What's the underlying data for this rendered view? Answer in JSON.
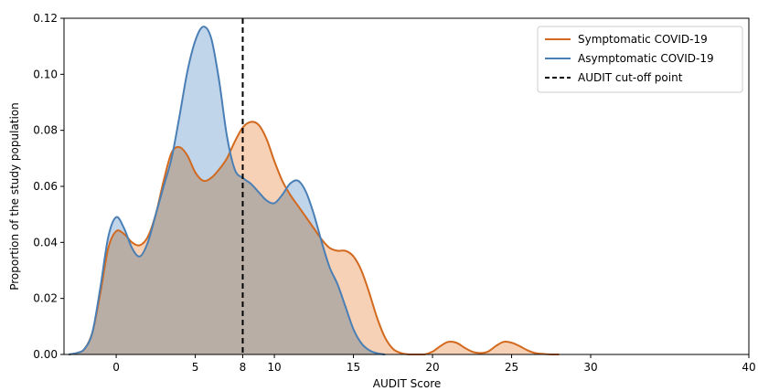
{
  "chart_data": {
    "type": "area",
    "xlabel": "AUDIT Score",
    "ylabel": "Proportion of the study population",
    "xlim": [
      -3.3,
      40
    ],
    "ylim": [
      0,
      0.12
    ],
    "xticks": [
      0,
      5,
      8,
      10,
      15,
      20,
      25,
      30,
      40
    ],
    "xtick_labels": [
      "0",
      "5",
      "8",
      "10",
      "15",
      "20",
      "25",
      "30",
      "40"
    ],
    "yticks": [
      0.0,
      0.02,
      0.04,
      0.06,
      0.08,
      0.1,
      0.12
    ],
    "ytick_labels": [
      "0.00",
      "0.02",
      "0.04",
      "0.06",
      "0.08",
      "0.10",
      "0.12"
    ],
    "grid": false,
    "legend_position": "top-right",
    "cutoff": {
      "x": 8,
      "label": "AUDIT cut-off point",
      "style": "dashed",
      "color": "#000000"
    },
    "series": [
      {
        "name": "Symptomatic COVID-19",
        "color": "#d2691e",
        "fill": "#f5c9a8",
        "x": [
          -3,
          -2.5,
          -2,
          -1.5,
          -1,
          -0.5,
          0,
          0.5,
          1,
          1.5,
          2,
          2.5,
          3,
          3.5,
          4,
          4.5,
          5,
          5.5,
          6,
          6.5,
          7,
          7.5,
          8,
          8.5,
          9,
          9.5,
          10,
          10.5,
          11,
          11.5,
          12,
          12.5,
          13,
          13.5,
          14,
          14.5,
          15,
          15.5,
          16,
          16.5,
          17,
          17.5,
          18,
          18.5,
          19,
          19.5,
          20,
          20.5,
          21,
          21.5,
          22,
          22.5,
          23,
          23.5,
          24,
          24.5,
          25,
          25.5,
          26,
          26.5,
          27,
          27.5,
          28
        ],
        "y": [
          0.0,
          0.0005,
          0.002,
          0.008,
          0.022,
          0.038,
          0.044,
          0.043,
          0.04,
          0.039,
          0.042,
          0.05,
          0.062,
          0.072,
          0.074,
          0.071,
          0.065,
          0.062,
          0.063,
          0.066,
          0.07,
          0.076,
          0.081,
          0.083,
          0.082,
          0.077,
          0.069,
          0.062,
          0.057,
          0.053,
          0.049,
          0.045,
          0.041,
          0.038,
          0.037,
          0.037,
          0.035,
          0.03,
          0.022,
          0.013,
          0.006,
          0.002,
          0.0005,
          0.0,
          0.0,
          0.0,
          0.001,
          0.003,
          0.0045,
          0.0042,
          0.0025,
          0.001,
          0.0005,
          0.001,
          0.003,
          0.0045,
          0.0042,
          0.003,
          0.0015,
          0.0005,
          0.0002,
          0.0,
          0.0
        ]
      },
      {
        "name": "Asymptomatic COVID-19",
        "color": "#4a7fb5",
        "fill": "#b5cde6",
        "x": [
          -3,
          -2.5,
          -2,
          -1.5,
          -1,
          -0.5,
          0,
          0.5,
          1,
          1.5,
          2,
          2.5,
          3,
          3.5,
          4,
          4.5,
          5,
          5.5,
          6,
          6.5,
          7,
          7.5,
          8,
          8.5,
          9,
          9.5,
          10,
          10.5,
          11,
          11.5,
          12,
          12.5,
          13,
          13.5,
          14,
          14.5,
          15,
          15.5,
          16,
          16.5,
          17
        ],
        "y": [
          0.0,
          0.0005,
          0.002,
          0.008,
          0.024,
          0.042,
          0.049,
          0.045,
          0.038,
          0.035,
          0.04,
          0.05,
          0.06,
          0.07,
          0.085,
          0.101,
          0.112,
          0.117,
          0.113,
          0.098,
          0.078,
          0.066,
          0.063,
          0.061,
          0.058,
          0.055,
          0.054,
          0.057,
          0.061,
          0.062,
          0.058,
          0.05,
          0.04,
          0.031,
          0.025,
          0.017,
          0.009,
          0.004,
          0.0015,
          0.0004,
          0.0
        ]
      }
    ]
  }
}
